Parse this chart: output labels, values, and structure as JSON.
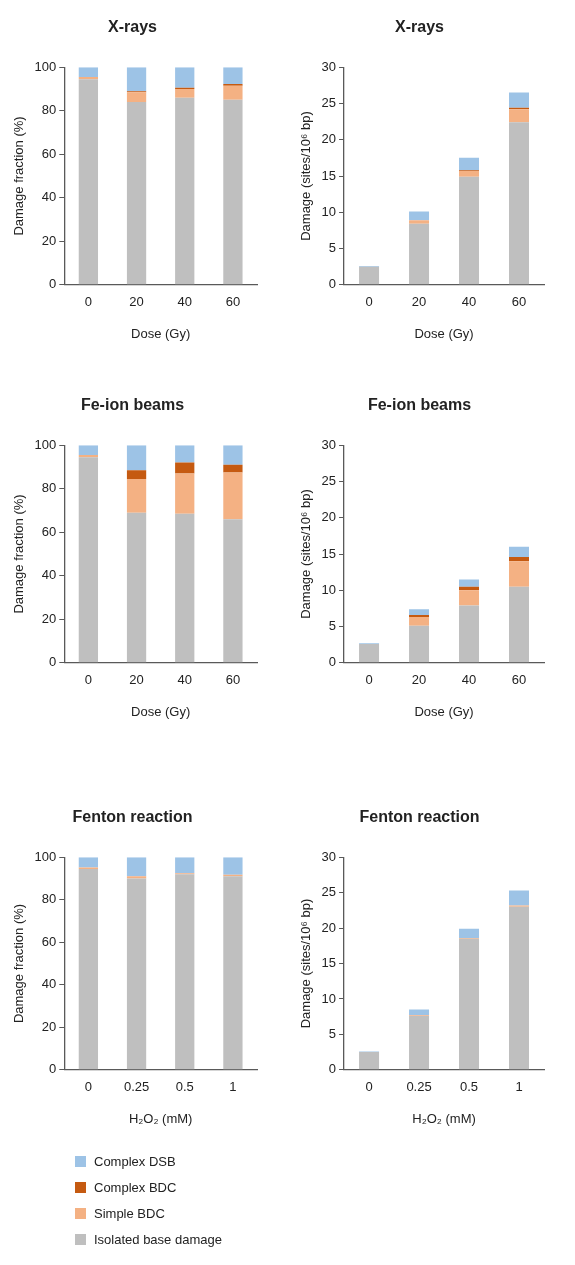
{
  "chart_data": [
    {
      "type": "bar",
      "stacked": true,
      "title": "X-rays",
      "xlabel": "Dose (Gy)",
      "ylabel": "Damage fraction (%)",
      "categories": [
        "0",
        "20",
        "40",
        "60"
      ],
      "ylim": [
        0,
        100
      ],
      "yticks": [
        0,
        20,
        40,
        60,
        80,
        100
      ],
      "grid": false,
      "legend": "bottom",
      "series": [
        {
          "name": "Isolated base damage",
          "color": "#bfbfbf",
          "values": [
            94.5,
            84,
            86,
            85
          ]
        },
        {
          "name": "Simple BDC",
          "color": "#f4b183",
          "values": [
            1,
            4.5,
            4,
            6.5
          ]
        },
        {
          "name": "Complex BDC",
          "color": "#c55a11",
          "values": [
            0,
            0.5,
            0.5,
            0.8
          ]
        },
        {
          "name": "Complex DSB",
          "color": "#9dc3e6",
          "values": [
            4.5,
            11,
            9.5,
            7.7
          ]
        }
      ]
    },
    {
      "type": "bar",
      "stacked": true,
      "title": "X-rays",
      "xlabel": "Dose (Gy)",
      "ylabel": "Damage (sites/10⁶ bp)",
      "categories": [
        "0",
        "20",
        "40",
        "60"
      ],
      "ylim": [
        0,
        30
      ],
      "yticks": [
        0,
        5,
        10,
        15,
        20,
        25,
        30
      ],
      "grid": false,
      "series": [
        {
          "color": "#bfbfbf",
          "values": [
            2.5,
            8.4,
            14.9,
            22.4
          ]
        },
        {
          "color": "#f4b183",
          "values": [
            0,
            0.5,
            0.8,
            1.8
          ]
        },
        {
          "color": "#c55a11",
          "values": [
            0,
            0,
            0.1,
            0.2
          ]
        },
        {
          "color": "#9dc3e6",
          "values": [
            0.1,
            1.2,
            1.7,
            2.1
          ]
        }
      ]
    },
    {
      "type": "bar",
      "stacked": true,
      "title": "Fe-ion beams",
      "xlabel": "Dose (Gy)",
      "ylabel": "Damage fraction (%)",
      "categories": [
        "0",
        "20",
        "40",
        "60"
      ],
      "ylim": [
        0,
        100
      ],
      "yticks": [
        0,
        20,
        40,
        60,
        80,
        100
      ],
      "grid": false,
      "series": [
        {
          "color": "#bfbfbf",
          "values": [
            94.5,
            69,
            68.5,
            66
          ]
        },
        {
          "color": "#f4b183",
          "values": [
            1,
            15.5,
            18.5,
            21.5
          ]
        },
        {
          "color": "#c55a11",
          "values": [
            0,
            4,
            5,
            3.5
          ]
        },
        {
          "color": "#9dc3e6",
          "values": [
            4.5,
            11.5,
            8,
            9
          ]
        }
      ]
    },
    {
      "type": "bar",
      "stacked": true,
      "title": "Fe-ion beams",
      "xlabel": "Dose (Gy)",
      "ylabel": "Damage (sites/10⁶ bp)",
      "categories": [
        "0",
        "20",
        "40",
        "60"
      ],
      "ylim": [
        0,
        30
      ],
      "yticks": [
        0,
        5,
        10,
        15,
        20,
        25,
        30
      ],
      "grid": false,
      "series": [
        {
          "color": "#bfbfbf",
          "values": [
            2.6,
            5.1,
            7.9,
            10.5
          ]
        },
        {
          "color": "#f4b183",
          "values": [
            0,
            1.2,
            2.1,
            3.5
          ]
        },
        {
          "color": "#c55a11",
          "values": [
            0,
            0.3,
            0.5,
            0.6
          ]
        },
        {
          "color": "#9dc3e6",
          "values": [
            0.1,
            0.8,
            1,
            1.4
          ]
        }
      ]
    },
    {
      "type": "bar",
      "stacked": true,
      "title": "Fenton reaction",
      "xlabel": "H₂O₂ (mM)",
      "ylabel": "Damage fraction (%)",
      "categories": [
        "0",
        "0.25",
        "0.5",
        "1"
      ],
      "ylim": [
        0,
        100
      ],
      "yticks": [
        0,
        20,
        40,
        60,
        80,
        100
      ],
      "grid": false,
      "series": [
        {
          "color": "#bfbfbf",
          "values": [
            94.5,
            90,
            92,
            91
          ]
        },
        {
          "color": "#f4b183",
          "values": [
            0.7,
            1,
            0.5,
            0.8
          ]
        },
        {
          "color": "#c55a11",
          "values": [
            0,
            0,
            0,
            0
          ]
        },
        {
          "color": "#9dc3e6",
          "values": [
            4.8,
            9,
            7.5,
            8.2
          ]
        }
      ]
    },
    {
      "type": "bar",
      "stacked": true,
      "title": "Fenton reaction",
      "xlabel": "H₂O₂ (mM)",
      "ylabel": "Damage (sites/10⁶ bp)",
      "categories": [
        "0",
        "0.25",
        "0.5",
        "1"
      ],
      "ylim": [
        0,
        30
      ],
      "yticks": [
        0,
        5,
        10,
        15,
        20,
        25,
        30
      ],
      "grid": false,
      "series": [
        {
          "color": "#bfbfbf",
          "values": [
            2.5,
            7.6,
            18.5,
            23.0
          ]
        },
        {
          "color": "#f4b183",
          "values": [
            0,
            0.1,
            0.1,
            0.2
          ]
        },
        {
          "color": "#c55a11",
          "values": [
            0,
            0,
            0,
            0
          ]
        },
        {
          "color": "#9dc3e6",
          "values": [
            0.1,
            0.8,
            1.3,
            2.1
          ]
        }
      ]
    }
  ]
}
